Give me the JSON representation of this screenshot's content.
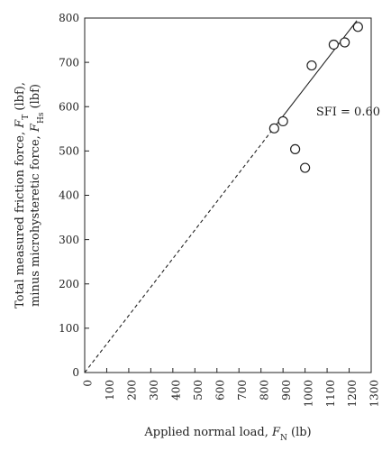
{
  "chart_data": {
    "type": "scatter",
    "title": "",
    "xlabel": {
      "text": "Applied normal load, ",
      "var": "F",
      "sub": "N",
      "unit": "  (lb)"
    },
    "ylabel": {
      "line1": {
        "text": "Total measured friction force, ",
        "var": "F",
        "sub": "T",
        "unit": " (lbf),"
      },
      "line2": {
        "text": "minus microhysteretic force, ",
        "var": "F",
        "sub": "Hs",
        "unit": " (lbf)"
      }
    },
    "xlim": [
      0,
      1300
    ],
    "ylim": [
      0,
      800
    ],
    "xticks": [
      0,
      100,
      200,
      300,
      400,
      500,
      600,
      700,
      800,
      900,
      1000,
      1100,
      1200,
      1300
    ],
    "yticks": [
      0,
      100,
      200,
      300,
      400,
      500,
      600,
      700,
      800
    ],
    "points": [
      {
        "x": 860,
        "y": 551
      },
      {
        "x": 900,
        "y": 567
      },
      {
        "x": 955,
        "y": 504
      },
      {
        "x": 1000,
        "y": 462
      },
      {
        "x": 1030,
        "y": 693
      },
      {
        "x": 1130,
        "y": 740
      },
      {
        "x": 1180,
        "y": 745
      },
      {
        "x": 1240,
        "y": 780
      }
    ],
    "fit": {
      "slope": 0.643,
      "dashed_range": [
        0,
        860
      ],
      "solid_range": [
        860,
        1235
      ]
    },
    "annotation": "SFI = 0.60",
    "annotation_at": {
      "x": 1050,
      "y": 580
    },
    "grid": false,
    "legend": "none"
  }
}
